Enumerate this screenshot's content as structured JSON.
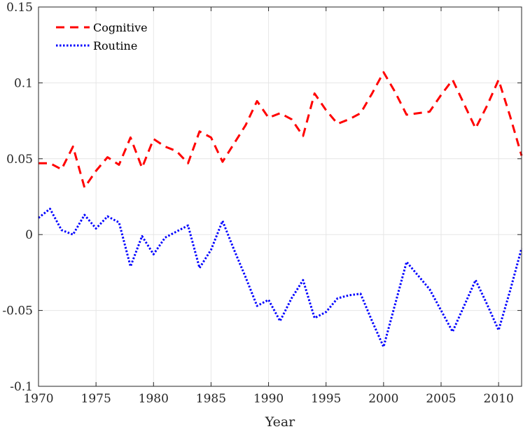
{
  "chart_data": {
    "type": "line",
    "title": "",
    "xlabel": "Year",
    "ylabel": "",
    "xlim": [
      1970,
      2012
    ],
    "ylim": [
      -0.1,
      0.15
    ],
    "x_ticks": [
      1970,
      1975,
      1980,
      1985,
      1990,
      1995,
      2000,
      2005,
      2010
    ],
    "x_tick_labels": [
      "1970",
      "1975",
      "1980",
      "1985",
      "1990",
      "1995",
      "2000",
      "2005",
      "2010"
    ],
    "y_ticks": [
      -0.1,
      -0.05,
      0,
      0.05,
      0.1,
      0.15
    ],
    "y_tick_labels": [
      "-0.1",
      "-0.05",
      "0",
      "0.05",
      "0.1",
      "0.15"
    ],
    "grid": true,
    "legend_position": "top-left",
    "x": [
      1970,
      1971,
      1972,
      1973,
      1974,
      1975,
      1976,
      1977,
      1978,
      1979,
      1980,
      1981,
      1982,
      1983,
      1984,
      1985,
      1986,
      1987,
      1988,
      1989,
      1990,
      1991,
      1992,
      1993,
      1994,
      1995,
      1996,
      1997,
      1998,
      1999,
      2000,
      2001,
      2002,
      2003,
      2004,
      2005,
      2006,
      2007,
      2008,
      2009,
      2010,
      2011,
      2012
    ],
    "series": [
      {
        "name": "Cognitive",
        "color": "#ff0000",
        "style": "dashed",
        "values": [
          0.047,
          0.047,
          0.043,
          0.058,
          0.031,
          0.042,
          0.051,
          0.046,
          0.064,
          0.044,
          0.063,
          0.058,
          0.055,
          0.047,
          0.068,
          0.064,
          0.048,
          0.06,
          0.072,
          0.088,
          0.077,
          0.08,
          0.076,
          0.065,
          0.093,
          0.082,
          0.073,
          0.076,
          0.08,
          0.093,
          0.107,
          0.094,
          0.079,
          0.08,
          0.081,
          0.092,
          0.102,
          0.086,
          0.07,
          0.085,
          0.102,
          0.078,
          0.052
        ]
      },
      {
        "name": "Routine",
        "color": "#0000ff",
        "style": "dotted",
        "values": [
          0.011,
          0.017,
          0.003,
          0.0,
          0.013,
          0.004,
          0.012,
          0.008,
          -0.021,
          -0.001,
          -0.013,
          -0.002,
          0.002,
          0.006,
          -0.022,
          -0.01,
          0.009,
          -0.01,
          -0.028,
          -0.047,
          -0.043,
          -0.057,
          -0.042,
          -0.03,
          -0.055,
          -0.051,
          -0.042,
          -0.04,
          -0.039,
          -0.057,
          -0.074,
          -0.046,
          -0.018,
          -0.027,
          -0.036,
          -0.05,
          -0.064,
          -0.047,
          -0.03,
          -0.046,
          -0.063,
          -0.037,
          -0.009
        ]
      }
    ]
  }
}
